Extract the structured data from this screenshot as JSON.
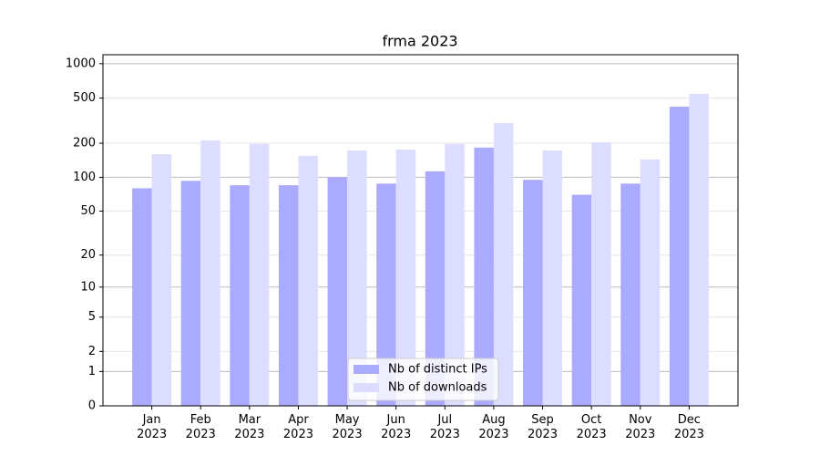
{
  "chart_data": {
    "type": "bar",
    "title": "frma 2023",
    "categories": [
      "Jan\n2023",
      "Feb\n2023",
      "Mar\n2023",
      "Apr\n2023",
      "May\n2023",
      "Jun\n2023",
      "Jul\n2023",
      "Aug\n2023",
      "Sep\n2023",
      "Oct\n2023",
      "Nov\n2023",
      "Dec\n2023"
    ],
    "series": [
      {
        "name": "Nb of distinct IPs",
        "color": "#aaaaff",
        "values": [
          80,
          93,
          85,
          85,
          100,
          88,
          113,
          183,
          95,
          70,
          88,
          420
        ]
      },
      {
        "name": "Nb of downloads",
        "color": "#ddddff",
        "values": [
          160,
          212,
          197,
          155,
          173,
          176,
          197,
          301,
          173,
          204,
          144,
          544
        ]
      }
    ],
    "yscale": "log1p",
    "ylim": [
      0,
      1200
    ],
    "yticks": [
      0,
      1,
      2,
      5,
      10,
      20,
      50,
      100,
      200,
      500,
      1000
    ],
    "grid": true,
    "legend": "lower center"
  }
}
